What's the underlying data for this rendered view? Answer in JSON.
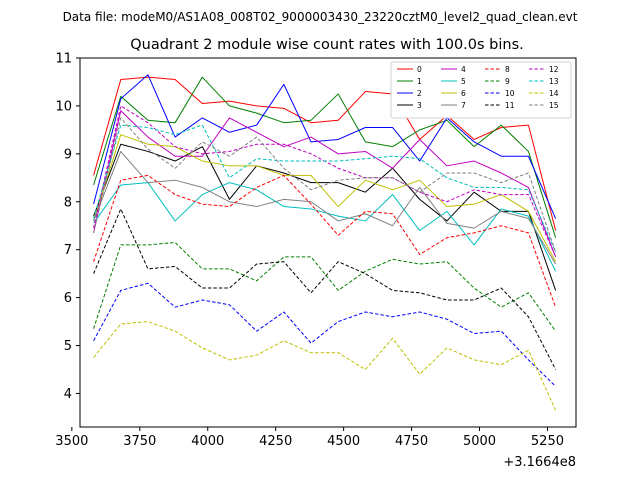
{
  "chart_data": {
    "type": "line",
    "suptitle": "Data file: modeM0/AS1A08_008T02_9000003430_23220cztM0_level2_quad_clean.evt",
    "title": "Quadrant 2 module wise count rates with 100.0s bins.",
    "xlabel": "",
    "ylabel": "",
    "x_offset_label": "+3.1664e8",
    "xlim": [
      3530,
      5355
    ],
    "ylim": [
      3.3,
      11.0
    ],
    "xticks": [
      3500,
      3750,
      4000,
      4250,
      4500,
      4750,
      5000,
      5250
    ],
    "yticks": [
      4,
      5,
      6,
      7,
      8,
      9,
      10,
      11
    ],
    "legend_position": "top-right",
    "x": [
      3580,
      3680,
      3780,
      3880,
      3980,
      4080,
      4180,
      4280,
      4380,
      4480,
      4580,
      4680,
      4780,
      4880,
      4980,
      5080,
      5180,
      5280
    ],
    "series": [
      {
        "name": "0",
        "color": "#ff0000",
        "dash": "solid",
        "values": [
          8.55,
          10.55,
          10.6,
          10.55,
          10.05,
          10.1,
          10.0,
          9.95,
          9.65,
          9.7,
          10.3,
          10.25,
          9.3,
          9.8,
          9.3,
          9.55,
          9.6,
          7.4
        ]
      },
      {
        "name": "1",
        "color": "#008000",
        "dash": "solid",
        "values": [
          8.35,
          10.2,
          9.7,
          9.65,
          10.6,
          10.0,
          9.85,
          9.65,
          9.7,
          10.25,
          9.25,
          9.15,
          9.5,
          9.7,
          9.15,
          9.6,
          9.05,
          7.25
        ]
      },
      {
        "name": "2",
        "color": "#0000ff",
        "dash": "solid",
        "values": [
          7.95,
          10.15,
          10.65,
          9.35,
          9.75,
          9.45,
          9.6,
          10.45,
          9.25,
          9.3,
          9.55,
          9.55,
          8.85,
          9.75,
          9.25,
          8.95,
          8.95,
          7.65
        ]
      },
      {
        "name": "3",
        "color": "#000000",
        "dash": "solid",
        "values": [
          7.7,
          9.2,
          9.05,
          8.85,
          9.15,
          8.05,
          8.75,
          8.6,
          8.4,
          8.4,
          8.2,
          8.7,
          8.05,
          7.6,
          8.2,
          7.8,
          7.8,
          6.15
        ]
      },
      {
        "name": "4",
        "color": "#c000c0",
        "dash": "solid",
        "values": [
          7.35,
          9.9,
          9.35,
          8.95,
          8.95,
          9.75,
          9.45,
          9.15,
          9.35,
          9.0,
          9.05,
          8.7,
          9.3,
          8.75,
          8.85,
          8.6,
          8.3,
          6.85
        ]
      },
      {
        "name": "5",
        "color": "#00bfbf",
        "dash": "solid",
        "values": [
          7.55,
          8.35,
          8.4,
          7.6,
          8.15,
          8.4,
          8.25,
          7.9,
          7.85,
          7.7,
          7.6,
          8.15,
          7.4,
          7.8,
          7.1,
          7.85,
          7.7,
          6.55
        ]
      },
      {
        "name": "6",
        "color": "#bfbf00",
        "dash": "solid",
        "values": [
          7.6,
          9.4,
          9.2,
          9.15,
          8.85,
          8.75,
          8.75,
          8.55,
          8.55,
          7.9,
          8.45,
          8.25,
          8.45,
          7.9,
          7.95,
          8.15,
          7.8,
          6.75
        ]
      },
      {
        "name": "7",
        "color": "#808080",
        "dash": "solid",
        "values": [
          7.6,
          9.05,
          8.4,
          8.45,
          8.3,
          8.0,
          7.9,
          8.05,
          8.0,
          7.6,
          7.75,
          7.5,
          8.3,
          7.55,
          7.45,
          7.8,
          7.65,
          6.7
        ]
      },
      {
        "name": "8",
        "color": "#ff0000",
        "dash": "dashed",
        "values": [
          6.75,
          8.45,
          8.55,
          8.15,
          7.95,
          7.9,
          8.3,
          8.55,
          7.95,
          7.3,
          7.8,
          7.75,
          6.9,
          7.25,
          7.35,
          7.5,
          7.35,
          5.8
        ]
      },
      {
        "name": "9",
        "color": "#008000",
        "dash": "dashed",
        "values": [
          5.35,
          7.1,
          7.1,
          7.15,
          6.6,
          6.6,
          6.35,
          6.85,
          6.85,
          6.15,
          6.55,
          6.8,
          6.7,
          6.75,
          6.2,
          5.8,
          6.1,
          5.3
        ]
      },
      {
        "name": "10",
        "color": "#0000ff",
        "dash": "dashed",
        "values": [
          5.1,
          6.15,
          6.3,
          5.8,
          5.95,
          5.85,
          5.3,
          5.7,
          5.05,
          5.5,
          5.7,
          5.6,
          5.7,
          5.55,
          5.25,
          5.3,
          4.7,
          4.15
        ]
      },
      {
        "name": "11",
        "color": "#000000",
        "dash": "dashed",
        "values": [
          6.5,
          7.85,
          6.6,
          6.65,
          6.2,
          6.2,
          6.7,
          6.75,
          6.1,
          6.75,
          6.5,
          6.15,
          6.1,
          5.95,
          5.95,
          6.2,
          5.6,
          4.5
        ]
      },
      {
        "name": "12",
        "color": "#c000c0",
        "dash": "dashed",
        "values": [
          7.45,
          10.0,
          9.65,
          9.15,
          9.0,
          9.05,
          9.2,
          9.2,
          9.0,
          8.7,
          8.5,
          8.5,
          8.2,
          8.0,
          8.25,
          8.15,
          8.15,
          6.85
        ]
      },
      {
        "name": "13",
        "color": "#00bfbf",
        "dash": "dashed",
        "values": [
          7.65,
          9.6,
          9.55,
          9.4,
          9.6,
          8.5,
          8.9,
          8.85,
          8.85,
          8.85,
          8.9,
          8.95,
          8.9,
          8.5,
          8.3,
          8.3,
          8.25,
          6.95
        ]
      },
      {
        "name": "14",
        "color": "#bfbf00",
        "dash": "dashed",
        "values": [
          4.75,
          5.45,
          5.5,
          5.3,
          4.95,
          4.7,
          4.8,
          5.1,
          4.85,
          4.85,
          4.5,
          5.15,
          4.4,
          4.95,
          4.7,
          4.6,
          4.9,
          3.65
        ]
      },
      {
        "name": "15",
        "color": "#808080",
        "dash": "dashed",
        "values": [
          7.35,
          9.75,
          9.1,
          8.7,
          9.25,
          8.95,
          9.35,
          8.7,
          8.25,
          8.45,
          8.5,
          8.5,
          8.2,
          8.6,
          8.6,
          8.4,
          8.6,
          6.95
        ]
      }
    ]
  }
}
